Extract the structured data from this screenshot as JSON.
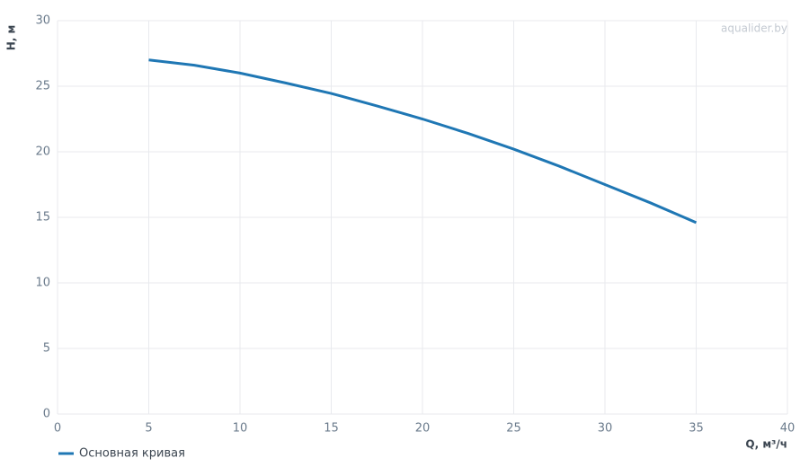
{
  "chart_data": {
    "type": "line",
    "watermark": "aqualider.by",
    "y_label": "H, м",
    "x_label": "Q, м³/ч",
    "x": [
      5,
      7.5,
      10,
      12.5,
      15,
      17.5,
      20,
      22.5,
      25,
      27.5,
      30,
      32.5,
      35
    ],
    "series": [
      {
        "name": "Основная кривая",
        "color": "#1f77b4",
        "values": [
          27.0,
          26.6,
          26.0,
          25.25,
          24.45,
          23.5,
          22.5,
          21.4,
          20.2,
          18.9,
          17.5,
          16.1,
          14.6
        ]
      }
    ],
    "xlim": [
      0,
      40
    ],
    "xticks": [
      0,
      5,
      10,
      15,
      20,
      25,
      30,
      35,
      40
    ],
    "ylim": [
      0,
      30
    ],
    "yticks": [
      0,
      5,
      10,
      15,
      20,
      25,
      30
    ],
    "grid": true,
    "legend": "bottom-left"
  }
}
